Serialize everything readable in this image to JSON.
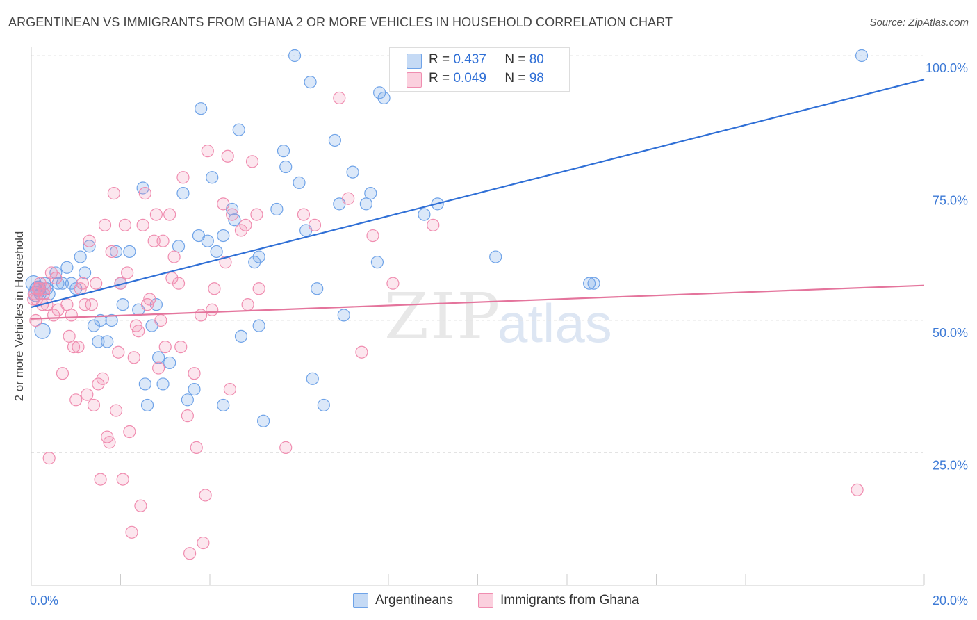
{
  "title": "ARGENTINEAN VS IMMIGRANTS FROM GHANA 2 OR MORE VEHICLES IN HOUSEHOLD CORRELATION CHART",
  "source": "Source: ZipAtlas.com",
  "watermark": {
    "zip": "ZIP",
    "atlas": "atlas"
  },
  "legend_top": [
    {
      "r_label": "R =",
      "r_value": "0.437",
      "n_label": "N =",
      "n_value": "80",
      "color": "#6fa3e8"
    },
    {
      "r_label": "R =",
      "r_value": "0.049",
      "n_label": "N =",
      "n_value": "98",
      "color": "#f08db0"
    }
  ],
  "legend_bottom": [
    "Argentineans",
    "Immigrants from Ghana"
  ],
  "chart_data": {
    "type": "scatter",
    "title": "ARGENTINEAN VS IMMIGRANTS FROM GHANA 2 OR MORE VEHICLES IN HOUSEHOLD CORRELATION CHART",
    "xlabel": "",
    "ylabel": "2 or more Vehicles in Household",
    "xlim": [
      0,
      20
    ],
    "ylim": [
      0,
      100
    ],
    "x_tick_labels": [
      "0.0%",
      "20.0%"
    ],
    "y_tick_values": [
      25,
      50,
      75,
      100
    ],
    "y_tick_labels": [
      "25.0%",
      "50.0%",
      "75.0%",
      "100.0%"
    ],
    "grid": true,
    "series": [
      {
        "name": "Argentineans",
        "color": "#6fa3e8",
        "line_color": "#2f6fd6",
        "trend": {
          "x": [
            0,
            20
          ],
          "y": [
            52.5,
            95.5
          ]
        },
        "points": [
          [
            0.1,
            56
          ],
          [
            0.2,
            55
          ],
          [
            0.25,
            48
          ],
          [
            0.3,
            57
          ],
          [
            0.35,
            56
          ],
          [
            0.4,
            55
          ],
          [
            0.55,
            59
          ],
          [
            0.6,
            57
          ],
          [
            0.7,
            57
          ],
          [
            0.8,
            60
          ],
          [
            0.9,
            57
          ],
          [
            1.0,
            56
          ],
          [
            1.1,
            62
          ],
          [
            1.2,
            59
          ],
          [
            1.3,
            64
          ],
          [
            1.4,
            49
          ],
          [
            1.5,
            46
          ],
          [
            1.55,
            50
          ],
          [
            1.7,
            46
          ],
          [
            1.8,
            50
          ],
          [
            1.9,
            63
          ],
          [
            2.0,
            57
          ],
          [
            2.05,
            53
          ],
          [
            2.2,
            63
          ],
          [
            2.4,
            52
          ],
          [
            2.5,
            75
          ],
          [
            2.55,
            38
          ],
          [
            2.6,
            34
          ],
          [
            2.7,
            49
          ],
          [
            2.8,
            53
          ],
          [
            2.85,
            43
          ],
          [
            2.95,
            38
          ],
          [
            3.1,
            42
          ],
          [
            3.3,
            64
          ],
          [
            3.4,
            74
          ],
          [
            3.5,
            35
          ],
          [
            3.65,
            37
          ],
          [
            3.75,
            66
          ],
          [
            3.8,
            90
          ],
          [
            3.95,
            65
          ],
          [
            4.05,
            77
          ],
          [
            4.15,
            63
          ],
          [
            4.3,
            34
          ],
          [
            4.3,
            66
          ],
          [
            4.5,
            71
          ],
          [
            4.55,
            69
          ],
          [
            4.65,
            86
          ],
          [
            4.7,
            47
          ],
          [
            5.0,
            61
          ],
          [
            5.1,
            62
          ],
          [
            5.1,
            49
          ],
          [
            5.2,
            31
          ],
          [
            5.5,
            71
          ],
          [
            5.65,
            82
          ],
          [
            5.7,
            79
          ],
          [
            5.9,
            100
          ],
          [
            6.0,
            76
          ],
          [
            6.15,
            67
          ],
          [
            6.25,
            95
          ],
          [
            6.3,
            39
          ],
          [
            6.4,
            56
          ],
          [
            6.55,
            34
          ],
          [
            6.8,
            84
          ],
          [
            6.9,
            72
          ],
          [
            7.0,
            51
          ],
          [
            7.2,
            78
          ],
          [
            7.5,
            72
          ],
          [
            7.6,
            74
          ],
          [
            7.75,
            61
          ],
          [
            7.8,
            93
          ],
          [
            7.9,
            92
          ],
          [
            8.8,
            70
          ],
          [
            9.1,
            72
          ],
          [
            10.4,
            62
          ],
          [
            12.5,
            57
          ],
          [
            12.6,
            57
          ],
          [
            18.6,
            100
          ],
          [
            0.05,
            57
          ],
          [
            0.1,
            55
          ],
          [
            0.15,
            56
          ]
        ]
      },
      {
        "name": "Immigrants from Ghana",
        "color": "#f08db0",
        "line_color": "#e4749c",
        "trend": {
          "x": [
            0,
            20
          ],
          "y": [
            50.3,
            56.6
          ]
        },
        "points": [
          [
            0.05,
            54
          ],
          [
            0.1,
            50
          ],
          [
            0.15,
            56
          ],
          [
            0.2,
            57
          ],
          [
            0.25,
            53
          ],
          [
            0.3,
            56
          ],
          [
            0.4,
            24
          ],
          [
            0.45,
            59
          ],
          [
            0.5,
            51
          ],
          [
            0.55,
            58
          ],
          [
            0.6,
            52
          ],
          [
            0.7,
            40
          ],
          [
            0.8,
            53
          ],
          [
            0.85,
            47
          ],
          [
            0.9,
            51
          ],
          [
            0.95,
            45
          ],
          [
            1.0,
            35
          ],
          [
            1.05,
            45
          ],
          [
            1.1,
            56
          ],
          [
            1.15,
            57
          ],
          [
            1.2,
            53
          ],
          [
            1.25,
            36
          ],
          [
            1.3,
            65
          ],
          [
            1.35,
            53
          ],
          [
            1.4,
            34
          ],
          [
            1.45,
            57
          ],
          [
            1.5,
            38
          ],
          [
            1.55,
            20
          ],
          [
            1.6,
            39
          ],
          [
            1.65,
            68
          ],
          [
            1.7,
            28
          ],
          [
            1.75,
            27
          ],
          [
            1.8,
            63
          ],
          [
            1.85,
            74
          ],
          [
            1.9,
            33
          ],
          [
            1.95,
            44
          ],
          [
            2.0,
            57
          ],
          [
            2.05,
            20
          ],
          [
            2.1,
            68
          ],
          [
            2.15,
            59
          ],
          [
            2.2,
            29
          ],
          [
            2.25,
            10
          ],
          [
            2.3,
            43
          ],
          [
            2.35,
            49
          ],
          [
            2.4,
            48
          ],
          [
            2.45,
            15
          ],
          [
            2.5,
            68
          ],
          [
            2.55,
            74
          ],
          [
            2.6,
            53
          ],
          [
            2.65,
            54
          ],
          [
            2.75,
            65
          ],
          [
            2.8,
            70
          ],
          [
            2.85,
            41
          ],
          [
            2.9,
            50
          ],
          [
            2.95,
            65
          ],
          [
            3.0,
            45
          ],
          [
            3.1,
            70
          ],
          [
            3.15,
            58
          ],
          [
            3.2,
            62
          ],
          [
            3.3,
            57
          ],
          [
            3.35,
            45
          ],
          [
            3.4,
            77
          ],
          [
            3.5,
            32
          ],
          [
            3.55,
            6
          ],
          [
            3.65,
            40
          ],
          [
            3.7,
            26
          ],
          [
            3.8,
            51
          ],
          [
            3.85,
            8
          ],
          [
            3.9,
            17
          ],
          [
            3.95,
            82
          ],
          [
            4.05,
            52
          ],
          [
            4.1,
            56
          ],
          [
            4.3,
            72
          ],
          [
            4.35,
            61
          ],
          [
            4.4,
            81
          ],
          [
            4.45,
            37
          ],
          [
            4.5,
            70
          ],
          [
            4.7,
            67
          ],
          [
            4.8,
            68
          ],
          [
            4.85,
            53
          ],
          [
            4.95,
            80
          ],
          [
            5.05,
            70
          ],
          [
            5.1,
            56
          ],
          [
            5.7,
            26
          ],
          [
            6.1,
            70
          ],
          [
            6.35,
            68
          ],
          [
            6.9,
            92
          ],
          [
            7.1,
            73
          ],
          [
            7.4,
            44
          ],
          [
            7.65,
            66
          ],
          [
            8.1,
            57
          ],
          [
            9.0,
            68
          ],
          [
            18.5,
            18
          ],
          [
            0.08,
            55
          ],
          [
            0.12,
            54
          ],
          [
            0.18,
            56
          ],
          [
            0.28,
            55
          ],
          [
            0.35,
            53
          ]
        ]
      }
    ]
  }
}
